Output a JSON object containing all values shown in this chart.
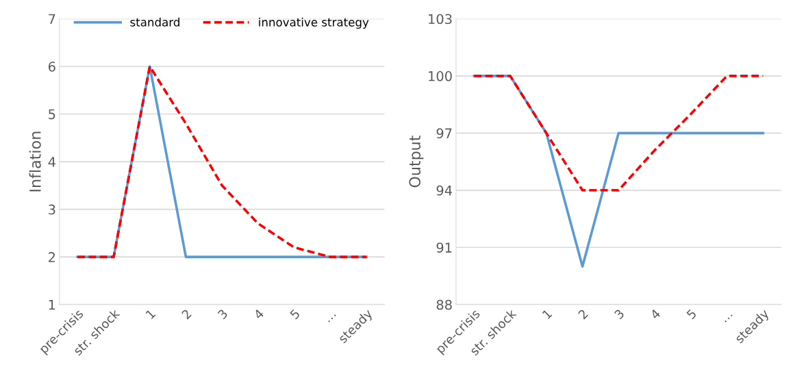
{
  "chart_data": [
    {
      "type": "line",
      "ylabel": "Inflation",
      "categories": [
        "pre-crisis",
        "str. shock",
        "1",
        "2",
        "3",
        "4",
        "5",
        "…",
        "steady"
      ],
      "ylim": [
        1,
        7
      ],
      "yticks": [
        1,
        2,
        3,
        4,
        5,
        6,
        7
      ],
      "grid": "y",
      "legend": "top",
      "marker": "none",
      "series": [
        {
          "name": "standard",
          "color": "#5b9bd5",
          "line_style": "solid",
          "values": [
            2,
            2,
            6,
            2,
            2,
            2,
            2,
            2,
            2
          ]
        },
        {
          "name": "innovative strategy",
          "color": "#ff0000",
          "line_style": "dashed",
          "values": [
            2,
            2,
            6,
            4.8,
            3.5,
            2.7,
            2.2,
            2,
            2
          ]
        }
      ]
    },
    {
      "type": "line",
      "ylabel": "Output",
      "categories": [
        "pre-crisis",
        "str. shock",
        "1",
        "2",
        "3",
        "4",
        "5",
        "…",
        "steady"
      ],
      "ylim": [
        88,
        103
      ],
      "yticks": [
        88,
        91,
        94,
        97,
        100,
        103
      ],
      "grid": "y",
      "marker": "none",
      "series": [
        {
          "color": "#5b9bd5",
          "line_style": "solid",
          "values": [
            100,
            100,
            97,
            90,
            97,
            97,
            97,
            97,
            97
          ]
        },
        {
          "color": "#ff0000",
          "line_style": "dashed",
          "values": [
            100,
            100,
            97,
            94,
            94,
            96.1,
            98,
            100,
            100
          ]
        }
      ]
    }
  ]
}
